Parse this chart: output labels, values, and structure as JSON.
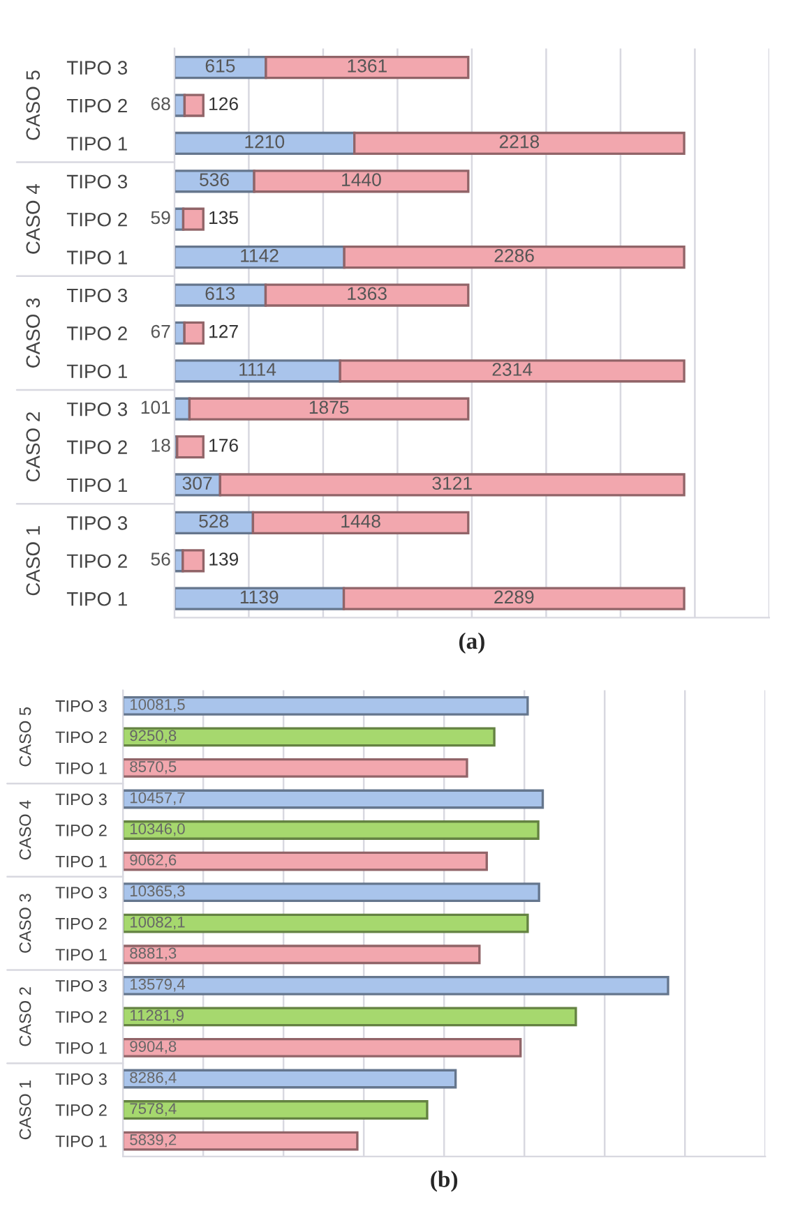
{
  "chart_data": [
    {
      "type": "bar",
      "orientation": "horizontal",
      "stacked": true,
      "title": "(a)",
      "categories": [
        "TIPO 3",
        "TIPO 2",
        "TIPO 1",
        "TIPO 3",
        "TIPO 2",
        "TIPO 1",
        "TIPO 3",
        "TIPO 2",
        "TIPO 1",
        "TIPO 3",
        "TIPO 2",
        "TIPO 1",
        "TIPO 3",
        "TIPO 2",
        "TIPO 1"
      ],
      "annotations": [
        "CASO 5",
        "CASO 4",
        "CASO 3",
        "CASO 2",
        "CASO 1"
      ],
      "series": [
        {
          "color": "#a9c4eb",
          "values": [
            615,
            68,
            1210,
            536,
            59,
            1142,
            613,
            67,
            1114,
            101,
            18,
            307,
            528,
            56,
            1139
          ]
        },
        {
          "color": "#f2a7ae",
          "values": [
            1361,
            126,
            2218,
            1440,
            135,
            2286,
            1363,
            127,
            2314,
            1875,
            176,
            3121,
            1448,
            139,
            2289
          ]
        }
      ],
      "xlim": [
        0,
        4000
      ],
      "xticks": [
        {
          "value": 0,
          "label": null
        },
        {
          "value": 500,
          "label": null
        },
        {
          "value": 1000,
          "label": null
        },
        {
          "value": 1500,
          "label": null
        },
        {
          "value": 2000,
          "label": null
        },
        {
          "value": 2500,
          "label": null
        },
        {
          "value": 3000,
          "label": null
        },
        {
          "value": 3500,
          "label": null
        },
        {
          "value": 4000,
          "label": null
        }
      ],
      "grid": "x",
      "tick_labels": "y",
      "data_labels": true
    },
    {
      "type": "bar",
      "orientation": "horizontal",
      "title": "(b)",
      "categories": [
        "TIPO 3",
        "TIPO 2",
        "TIPO 1",
        "TIPO 3",
        "TIPO 2",
        "TIPO 1",
        "TIPO 3",
        "TIPO 2",
        "TIPO 1",
        "TIPO 3",
        "TIPO 2",
        "TIPO 1",
        "TIPO 3",
        "TIPO 2",
        "TIPO 1"
      ],
      "annotations": [
        "CASO 5",
        "CASO 4",
        "CASO 3",
        "CASO 2",
        "CASO 1"
      ],
      "values": [
        10081.5,
        9250.8,
        8570.5,
        10457.7,
        10346.0,
        9062.6,
        10365.3,
        10082.1,
        8881.3,
        13579.4,
        11281.9,
        9904.8,
        8286.4,
        7578.4,
        5839.2
      ],
      "value_labels": [
        "10081,5",
        "9250,8",
        "8570,5",
        "10457,7",
        "10346,0",
        "9062,6",
        "10365,3",
        "10082,1",
        "8881,3",
        "13579,4",
        "11281,9",
        "9904,8",
        "8286,4",
        "7578,4",
        "5839,2"
      ],
      "colors": [
        "#a9c4eb",
        "#a6d86e",
        "#f2a7ae",
        "#a9c4eb",
        "#a6d86e",
        "#f2a7ae",
        "#a9c4eb",
        "#a6d86e",
        "#f2a7ae",
        "#a9c4eb",
        "#a6d86e",
        "#f2a7ae",
        "#a9c4eb",
        "#a6d86e",
        "#f2a7ae"
      ],
      "xlim": [
        0,
        16000
      ],
      "xticks": [
        {
          "value": 0,
          "label": null
        },
        {
          "value": 2000,
          "label": null
        },
        {
          "value": 4000,
          "label": null
        },
        {
          "value": 6000,
          "label": null
        },
        {
          "value": 8000,
          "label": null
        },
        {
          "value": 10000,
          "label": null
        },
        {
          "value": 12000,
          "label": null
        },
        {
          "value": 14000,
          "label": null
        },
        {
          "value": 16000,
          "label": null
        }
      ],
      "grid": "x",
      "tick_labels": "y"
    }
  ]
}
